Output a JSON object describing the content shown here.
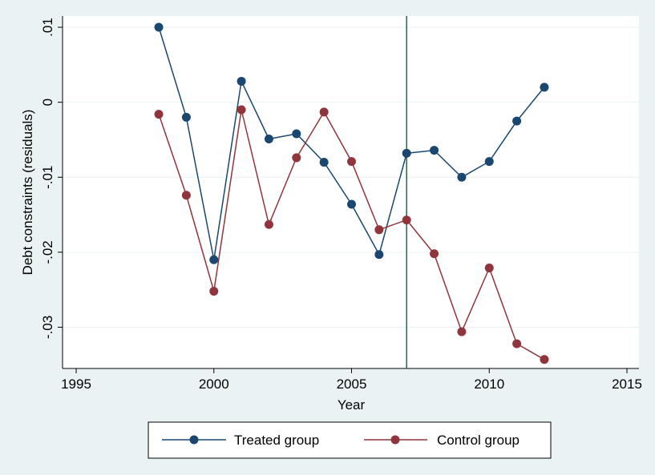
{
  "chart_data": {
    "type": "line",
    "xlabel": "Year",
    "ylabel": "Debt constraints (residuals)",
    "xlim": [
      1995,
      2015
    ],
    "ylim": [
      -0.0355,
      0.0115
    ],
    "x_ticks": [
      1995,
      2000,
      2005,
      2010,
      2015
    ],
    "x_tick_labels": [
      "1995",
      "2000",
      "2005",
      "2010",
      "2015"
    ],
    "y_ticks": [
      0.01,
      0,
      -0.01,
      -0.02,
      -0.03
    ],
    "y_tick_labels": [
      ".01",
      "0",
      "-.01",
      "-.02",
      "-.03"
    ],
    "grid": "horizontal",
    "legend_position": "bottom",
    "reference_line": {
      "x": 2007,
      "color": "#1b6b4a"
    },
    "series": [
      {
        "name": "Treated group",
        "color": "#1a476f",
        "x": [
          1998,
          1999,
          2000,
          2001,
          2002,
          2003,
          2004,
          2005,
          2006,
          2007,
          2008,
          2009,
          2010,
          2011,
          2012
        ],
        "values": [
          0.01,
          -0.002,
          -0.021,
          0.0028,
          -0.0049,
          -0.0042,
          -0.008,
          -0.0136,
          -0.0203,
          -0.0068,
          -0.0064,
          -0.01,
          -0.0079,
          -0.0025,
          0.002
        ]
      },
      {
        "name": "Control group",
        "color": "#90353b",
        "x": [
          1998,
          1999,
          2000,
          2001,
          2002,
          2003,
          2004,
          2005,
          2006,
          2007,
          2008,
          2009,
          2010,
          2011,
          2012
        ],
        "values": [
          -0.0016,
          -0.0124,
          -0.0252,
          -0.001,
          -0.0163,
          -0.0074,
          -0.0013,
          -0.0079,
          -0.017,
          -0.0157,
          -0.0202,
          -0.0306,
          -0.0221,
          -0.0322,
          -0.0343
        ]
      }
    ]
  }
}
